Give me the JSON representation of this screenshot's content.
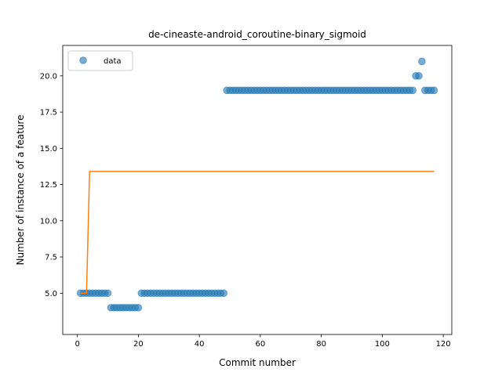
{
  "chart_data": {
    "type": "scatter",
    "title": "de-cineaste-android_coroutine-binary_sigmoid",
    "xlabel": "Commit number",
    "ylabel": "Number of instance of a feature",
    "xlim": [
      -4.8,
      122.8
    ],
    "ylim": [
      2.15,
      22.1
    ],
    "xticks": [
      0,
      20,
      40,
      60,
      80,
      100,
      120
    ],
    "yticks": [
      5.0,
      7.5,
      10.0,
      12.5,
      15.0,
      17.5,
      20.0
    ],
    "xtick_labels": [
      "0",
      "20",
      "40",
      "60",
      "80",
      "100",
      "120"
    ],
    "ytick_labels": [
      "5.0",
      "7.5",
      "10.0",
      "12.5",
      "15.0",
      "17.5",
      "20.0"
    ],
    "grid": false,
    "legend": {
      "placement": "upper-left",
      "entries": [
        "data"
      ]
    },
    "colors": {
      "data": "#1f77b4",
      "fit": "#ff7f0e"
    },
    "series": [
      {
        "name": "data",
        "kind": "scatter",
        "x": [
          1,
          2,
          3,
          4,
          5,
          6,
          7,
          8,
          9,
          10,
          11,
          12,
          13,
          14,
          15,
          16,
          17,
          18,
          19,
          20,
          21,
          22,
          23,
          24,
          25,
          26,
          27,
          28,
          29,
          30,
          31,
          32,
          33,
          34,
          35,
          36,
          37,
          38,
          39,
          40,
          41,
          42,
          43,
          44,
          45,
          46,
          47,
          48,
          49,
          50,
          51,
          52,
          53,
          54,
          55,
          56,
          57,
          58,
          59,
          60,
          61,
          62,
          63,
          64,
          65,
          66,
          67,
          68,
          69,
          70,
          71,
          72,
          73,
          74,
          75,
          76,
          77,
          78,
          79,
          80,
          81,
          82,
          83,
          84,
          85,
          86,
          87,
          88,
          89,
          90,
          91,
          92,
          93,
          94,
          95,
          96,
          97,
          98,
          99,
          100,
          101,
          102,
          103,
          104,
          105,
          106,
          107,
          108,
          109,
          110,
          111,
          112,
          113,
          114,
          115,
          116,
          117
        ],
        "y": [
          5,
          5,
          5,
          5,
          5,
          5,
          5,
          5,
          5,
          5,
          4,
          4,
          4,
          4,
          4,
          4,
          4,
          4,
          4,
          4,
          5,
          5,
          5,
          5,
          5,
          5,
          5,
          5,
          5,
          5,
          5,
          5,
          5,
          5,
          5,
          5,
          5,
          5,
          5,
          5,
          5,
          5,
          5,
          5,
          5,
          5,
          5,
          5,
          19,
          19,
          19,
          19,
          19,
          19,
          19,
          19,
          19,
          19,
          19,
          19,
          19,
          19,
          19,
          19,
          19,
          19,
          19,
          19,
          19,
          19,
          19,
          19,
          19,
          19,
          19,
          19,
          19,
          19,
          19,
          19,
          19,
          19,
          19,
          19,
          19,
          19,
          19,
          19,
          19,
          19,
          19,
          19,
          19,
          19,
          19,
          19,
          19,
          19,
          19,
          19,
          19,
          19,
          19,
          19,
          19,
          19,
          19,
          19,
          19,
          19,
          20,
          20,
          21,
          19,
          19,
          19,
          19
        ]
      },
      {
        "kind": "line",
        "x": [
          1,
          3,
          4,
          117
        ],
        "y": [
          5.0,
          5.0,
          13.4,
          13.4
        ]
      }
    ]
  }
}
